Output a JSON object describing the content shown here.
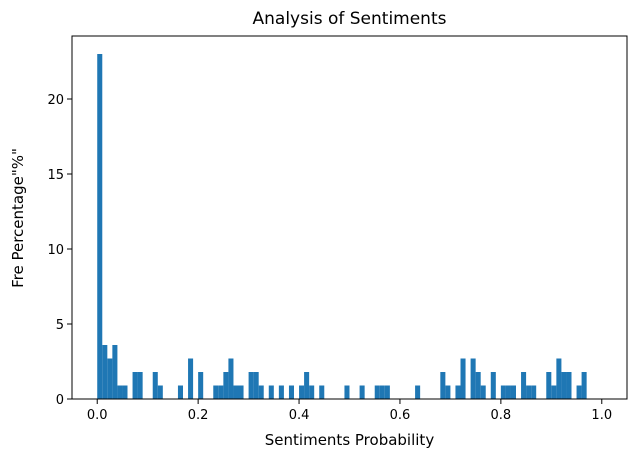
{
  "chart_data": {
    "type": "bar",
    "subtype": "histogram",
    "title": "Analysis of Sentiments",
    "xlabel": "Sentiments Probability",
    "ylabel": "Fre Percentage\"%\"",
    "xlim": [
      -0.05,
      1.05
    ],
    "ylim": [
      0,
      24.2
    ],
    "bin_width": 0.01,
    "grid": false,
    "legend": "none",
    "bar_color": "#1f77b4",
    "x_ticks": [
      0.0,
      0.2,
      0.4,
      0.6,
      0.8,
      1.0
    ],
    "x_tick_labels": [
      "0.0",
      "0.2",
      "0.4",
      "0.6",
      "0.8",
      "1.0"
    ],
    "y_ticks": [
      0,
      5,
      10,
      15,
      20
    ],
    "y_tick_labels": [
      "0",
      "5",
      "10",
      "15",
      "20"
    ],
    "bins_start": [
      0.0,
      0.01,
      0.02,
      0.03,
      0.04,
      0.05,
      0.07,
      0.08,
      0.11,
      0.12,
      0.16,
      0.18,
      0.2,
      0.23,
      0.24,
      0.25,
      0.26,
      0.27,
      0.28,
      0.3,
      0.31,
      0.32,
      0.34,
      0.36,
      0.38,
      0.4,
      0.41,
      0.42,
      0.44,
      0.49,
      0.52,
      0.55,
      0.56,
      0.57,
      0.63,
      0.68,
      0.69,
      0.71,
      0.72,
      0.74,
      0.75,
      0.76,
      0.78,
      0.8,
      0.81,
      0.82,
      0.84,
      0.85,
      0.86,
      0.89,
      0.9,
      0.91,
      0.92,
      0.93,
      0.95,
      0.96
    ],
    "values": [
      23.0,
      3.6,
      2.7,
      3.6,
      0.9,
      0.9,
      1.8,
      1.8,
      1.8,
      0.9,
      0.9,
      2.7,
      1.8,
      0.9,
      0.9,
      1.8,
      2.7,
      0.9,
      0.9,
      1.8,
      1.8,
      0.9,
      0.9,
      0.9,
      0.9,
      0.9,
      1.8,
      0.9,
      0.9,
      0.9,
      0.9,
      0.9,
      0.9,
      0.9,
      0.9,
      1.8,
      0.9,
      0.9,
      2.7,
      2.7,
      1.8,
      0.9,
      1.8,
      0.9,
      0.9,
      0.9,
      1.8,
      0.9,
      0.9,
      1.8,
      0.9,
      2.7,
      1.8,
      1.8,
      0.9,
      1.8
    ]
  }
}
